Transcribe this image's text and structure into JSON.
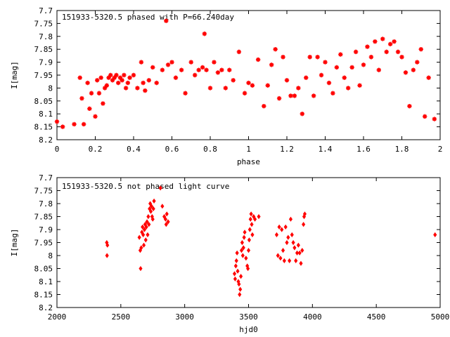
{
  "chart_data": [
    {
      "type": "scatter",
      "title": "151933-5320.5 phased with P=66.240day",
      "xlabel": "phase",
      "ylabel": "I[mag]",
      "xlim": [
        0,
        2
      ],
      "ylim": [
        8.2,
        7.7
      ],
      "y_inverted": true,
      "x_ticks": [
        0,
        0.2,
        0.4,
        0.6,
        0.8,
        1,
        1.2,
        1.4,
        1.6,
        1.8,
        2
      ],
      "x_tick_labels": [
        "0",
        "0.2",
        "0.4",
        "0.6",
        "0.8",
        "1",
        "1.2",
        "1.4",
        "1.6",
        "1.8",
        "2"
      ],
      "y_ticks": [
        7.7,
        7.75,
        7.8,
        7.85,
        7.9,
        7.95,
        8,
        8.05,
        8.1,
        8.15,
        8.2
      ],
      "y_tick_labels": [
        "7.7",
        "7.75",
        "7.8",
        "7.85",
        "7.9",
        "7.95",
        "8",
        "8.05",
        "8.1",
        "8.15",
        "8.2"
      ],
      "grid": false,
      "marker_color": "#ff0000",
      "marker": "star",
      "series": [
        {
          "x": [
            0.0,
            0.03,
            0.09,
            0.12,
            0.13,
            0.14,
            0.16,
            0.17,
            0.18,
            0.2,
            0.21,
            0.22,
            0.23,
            0.24,
            0.25,
            0.26,
            0.27,
            0.28,
            0.29,
            0.3,
            0.31,
            0.32,
            0.33,
            0.34,
            0.35,
            0.36,
            0.37,
            0.38,
            0.4,
            0.42,
            0.44,
            0.45,
            0.46,
            0.48,
            0.5,
            0.52,
            0.55,
            0.57,
            0.58,
            0.6,
            0.62,
            0.65,
            0.67,
            0.7,
            0.72,
            0.74,
            0.76,
            0.77,
            0.78,
            0.8,
            0.82,
            0.84,
            0.86,
            0.88,
            0.9,
            0.92,
            0.95,
            0.98,
            1.0,
            1.02,
            1.05,
            1.08,
            1.1,
            1.12,
            1.14,
            1.16,
            1.18,
            1.2,
            1.22,
            1.24,
            1.26,
            1.28,
            1.3,
            1.32,
            1.34,
            1.36,
            1.38,
            1.4,
            1.42,
            1.44,
            1.46,
            1.48,
            1.5,
            1.52,
            1.54,
            1.56,
            1.58,
            1.6,
            1.62,
            1.64,
            1.66,
            1.68,
            1.7,
            1.72,
            1.74,
            1.76,
            1.78,
            1.8,
            1.82,
            1.84,
            1.86,
            1.88,
            1.9,
            1.92,
            1.94,
            1.97
          ],
          "y": [
            8.13,
            8.15,
            8.14,
            7.96,
            8.04,
            8.14,
            7.98,
            8.08,
            8.02,
            8.11,
            7.97,
            8.02,
            7.96,
            8.06,
            8.0,
            7.99,
            7.96,
            7.95,
            7.97,
            7.96,
            7.95,
            7.98,
            7.96,
            7.97,
            7.95,
            8.0,
            7.98,
            7.96,
            7.95,
            8.0,
            7.9,
            7.98,
            8.01,
            7.97,
            7.92,
            7.98,
            7.93,
            7.74,
            7.91,
            7.9,
            7.96,
            7.93,
            8.02,
            7.9,
            7.95,
            7.93,
            7.92,
            7.79,
            7.93,
            8.0,
            7.9,
            7.94,
            7.93,
            8.0,
            7.93,
            7.97,
            7.86,
            8.02,
            7.98,
            7.99,
            7.89,
            8.07,
            7.99,
            7.91,
            7.85,
            8.04,
            7.88,
            7.97,
            8.03,
            8.03,
            8.0,
            8.1,
            7.96,
            7.88,
            8.03,
            7.88,
            7.95,
            7.9,
            7.98,
            8.02,
            7.92,
            7.87,
            7.96,
            8.0,
            7.92,
            7.86,
            7.99,
            7.91,
            7.84,
            7.88,
            7.82,
            7.93,
            7.81,
            7.86,
            7.83,
            7.82,
            7.86,
            7.88,
            7.94,
            8.07,
            7.93,
            7.9,
            7.85,
            8.11,
            7.96,
            8.12
          ]
        }
      ]
    },
    {
      "type": "scatter",
      "title": "151933-5320.5 not phased light curve",
      "xlabel": "hjd0",
      "ylabel": "I[mag]",
      "xlim": [
        2000,
        5000
      ],
      "ylim": [
        8.2,
        7.7
      ],
      "y_inverted": true,
      "x_ticks": [
        2000,
        2500,
        3000,
        3500,
        4000,
        4500,
        5000
      ],
      "x_tick_labels": [
        "2000",
        "2500",
        "3000",
        "3500",
        "4000",
        "4500",
        "5000"
      ],
      "y_ticks": [
        7.7,
        7.75,
        7.8,
        7.85,
        7.9,
        7.95,
        8,
        8.05,
        8.1,
        8.15,
        8.2
      ],
      "y_tick_labels": [
        "7.7",
        "7.75",
        "7.8",
        "7.85",
        "7.9",
        "7.95",
        "8",
        "8.05",
        "8.1",
        "8.15",
        "8.2"
      ],
      "grid": false,
      "marker_color": "#ff0000",
      "marker": "diamond",
      "series": [
        {
          "x": [
            2390,
            2395,
            2392,
            2645,
            2652,
            2655,
            2660,
            2665,
            2670,
            2675,
            2680,
            2685,
            2690,
            2695,
            2700,
            2705,
            2710,
            2715,
            2720,
            2725,
            2730,
            2735,
            2740,
            2745,
            2750,
            2755,
            2760,
            2810,
            2825,
            2840,
            2850,
            2855,
            2860,
            2870,
            3390,
            3395,
            3400,
            3405,
            3410,
            3415,
            3420,
            3425,
            3430,
            3435,
            3440,
            3445,
            3450,
            3455,
            3460,
            3465,
            3470,
            3480,
            3490,
            3495,
            3500,
            3505,
            3510,
            3515,
            3520,
            3525,
            3530,
            3540,
            3550,
            3580,
            3720,
            3730,
            3740,
            3750,
            3760,
            3770,
            3780,
            3790,
            3800,
            3810,
            3820,
            3830,
            3840,
            3850,
            3860,
            3870,
            3880,
            3890,
            3900,
            3910,
            3920,
            3930,
            3935,
            3940,
            4960
          ],
          "y": [
            7.95,
            7.96,
            8.0,
            7.93,
            7.98,
            8.05,
            7.97,
            7.91,
            7.89,
            7.92,
            7.96,
            7.9,
            7.88,
            7.94,
            7.89,
            7.87,
            7.92,
            7.85,
            7.88,
            7.82,
            7.8,
            7.83,
            7.81,
            7.85,
            7.86,
            7.82,
            7.79,
            7.74,
            7.81,
            7.85,
            7.86,
            7.88,
            7.84,
            7.87,
            8.07,
            8.09,
            8.04,
            8.02,
            7.99,
            8.06,
            8.1,
            8.11,
            8.15,
            8.13,
            8.08,
            7.98,
            7.95,
            8.0,
            7.97,
            7.93,
            7.91,
            8.01,
            8.04,
            8.05,
            7.98,
            7.94,
            7.9,
            7.86,
            7.84,
            7.88,
            7.92,
            7.85,
            7.86,
            7.85,
            7.92,
            8.0,
            7.89,
            8.01,
            7.9,
            7.98,
            8.02,
            7.89,
            7.95,
            7.93,
            8.02,
            7.86,
            7.92,
            7.95,
            7.97,
            8.02,
            7.99,
            7.96,
            7.99,
            8.03,
            7.98,
            7.88,
            7.85,
            7.84,
            7.92
          ]
        }
      ]
    }
  ]
}
